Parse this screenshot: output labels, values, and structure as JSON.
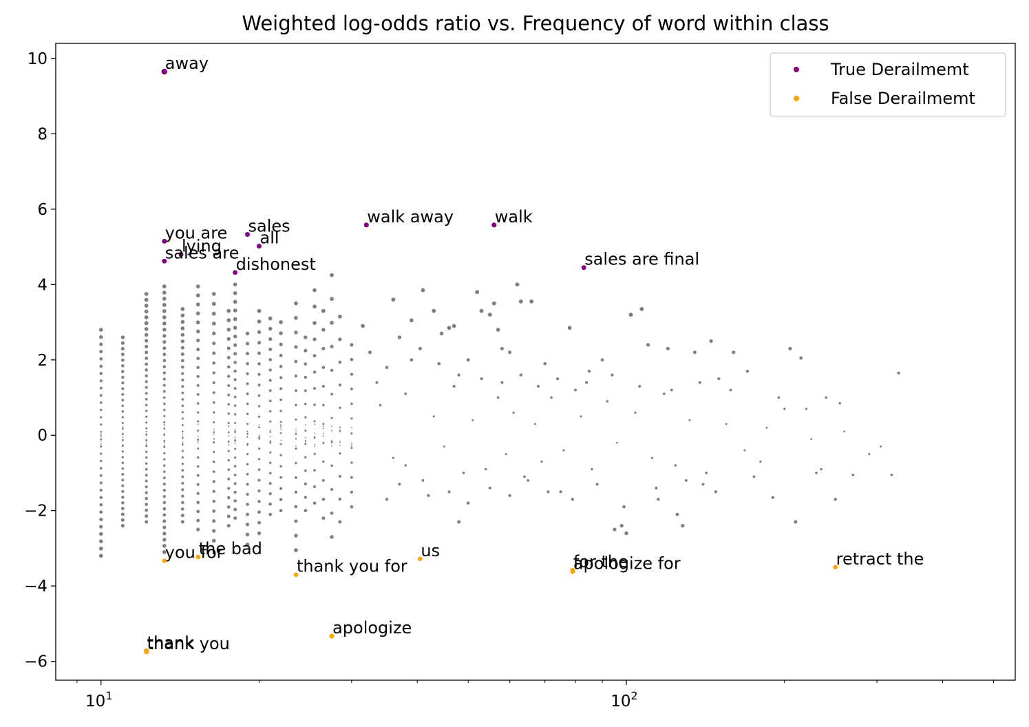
{
  "chart_data": {
    "type": "scatter",
    "title": "Weighted log-odds ratio vs. Frequency of word within class",
    "xlabel": "",
    "ylabel": "",
    "xscale": "log",
    "xlim": [
      8.2,
      550
    ],
    "ylim": [
      -6.5,
      10.4
    ],
    "grid": false,
    "legend_position": "top-right",
    "x_ticks": [
      {
        "value": 10,
        "base": "10",
        "exp": "1"
      },
      {
        "value": 100,
        "base": "10",
        "exp": "2"
      }
    ],
    "y_ticks": [
      -6,
      -4,
      -2,
      0,
      2,
      4,
      6,
      8,
      10
    ],
    "y_tick_labels": [
      "−6",
      "−4",
      "−2",
      "0",
      "2",
      "4",
      "6",
      "8",
      "10"
    ],
    "series": [
      {
        "name": "True Derailmemt",
        "color": "#800080",
        "points": [
          {
            "x": 13.2,
            "y": 9.65,
            "label": "away"
          },
          {
            "x": 13.2,
            "y": 5.15,
            "label": "you are"
          },
          {
            "x": 19.0,
            "y": 5.33,
            "label": "sales"
          },
          {
            "x": 20.0,
            "y": 5.02,
            "label": "all"
          },
          {
            "x": 14.2,
            "y": 4.8,
            "label": "lying"
          },
          {
            "x": 13.2,
            "y": 4.62,
            "label": "sales are"
          },
          {
            "x": 18.0,
            "y": 4.32,
            "label": "dishonest"
          },
          {
            "x": 32.0,
            "y": 5.58,
            "label": "walk away"
          },
          {
            "x": 56.0,
            "y": 5.58,
            "label": "walk"
          },
          {
            "x": 83.0,
            "y": 4.45,
            "label": "sales are final"
          }
        ]
      },
      {
        "name": "False Derailmemt",
        "color": "#ffa500",
        "points": [
          {
            "x": 13.2,
            "y": -3.33,
            "label": "you for"
          },
          {
            "x": 15.3,
            "y": -3.23,
            "label": "the bad"
          },
          {
            "x": 23.5,
            "y": -3.7,
            "label": "thank you for"
          },
          {
            "x": 40.5,
            "y": -3.28,
            "label": "us"
          },
          {
            "x": 27.5,
            "y": -5.33,
            "label": "apologize"
          },
          {
            "x": 12.2,
            "y": -5.72,
            "label": "thank"
          },
          {
            "x": 12.2,
            "y": -5.75,
            "label": "thank you"
          },
          {
            "x": 79.0,
            "y": -3.58,
            "label": "for the"
          },
          {
            "x": 79.0,
            "y": -3.62,
            "label": "apologize for"
          },
          {
            "x": 250.0,
            "y": -3.5,
            "label": "retract the"
          }
        ]
      }
    ],
    "background_series": {
      "color": "#808080",
      "columns": [
        {
          "x": 10.0,
          "ymin": -3.2,
          "ymax": 2.8,
          "n": 32
        },
        {
          "x": 11.0,
          "ymin": -2.4,
          "ymax": 2.6,
          "n": 34
        },
        {
          "x": 12.2,
          "ymin": -2.3,
          "ymax": 3.75,
          "n": 40
        },
        {
          "x": 13.2,
          "ymin": -3.1,
          "ymax": 3.95,
          "n": 44
        },
        {
          "x": 14.3,
          "ymin": -2.3,
          "ymax": 3.35,
          "n": 34
        },
        {
          "x": 15.3,
          "ymin": -2.5,
          "ymax": 3.95,
          "n": 28
        },
        {
          "x": 16.4,
          "ymin": -2.8,
          "ymax": 3.75,
          "n": 26
        },
        {
          "x": 17.5,
          "ymin": -2.4,
          "ymax": 3.3,
          "n": 24
        },
        {
          "x": 18.0,
          "ymin": -2.2,
          "ymax": 4.0,
          "n": 28
        },
        {
          "x": 19.0,
          "ymin": -2.9,
          "ymax": 2.7,
          "n": 22
        },
        {
          "x": 20.0,
          "ymin": -2.6,
          "ymax": 3.3,
          "n": 22
        },
        {
          "x": 21.0,
          "ymin": -2.1,
          "ymax": 3.1,
          "n": 20
        },
        {
          "x": 22.0,
          "ymin": -2.0,
          "ymax": 3.0,
          "n": 18
        },
        {
          "x": 23.5,
          "ymin": -3.05,
          "ymax": 3.5,
          "n": 18
        },
        {
          "x": 24.5,
          "ymin": -2.0,
          "ymax": 2.6,
          "n": 14
        },
        {
          "x": 25.5,
          "ymin": -1.8,
          "ymax": 3.85,
          "n": 14
        },
        {
          "x": 26.5,
          "ymin": -2.2,
          "ymax": 3.3,
          "n": 12
        },
        {
          "x": 27.5,
          "ymin": -2.7,
          "ymax": 4.25,
          "n": 12
        },
        {
          "x": 28.5,
          "ymin": -2.3,
          "ymax": 3.15,
          "n": 10
        },
        {
          "x": 30.0,
          "ymin": -1.9,
          "ymax": 2.4,
          "n": 12
        }
      ],
      "scatter": [
        [
          31.5,
          2.9
        ],
        [
          32.5,
          2.2
        ],
        [
          33.5,
          1.4
        ],
        [
          35,
          -1.7
        ],
        [
          36,
          3.6
        ],
        [
          37,
          2.6
        ],
        [
          38,
          -0.8
        ],
        [
          39,
          3.05
        ],
        [
          40.5,
          2.3
        ],
        [
          41,
          3.85
        ],
        [
          43,
          3.3
        ],
        [
          44.5,
          2.7
        ],
        [
          46,
          2.85
        ],
        [
          47,
          2.9
        ],
        [
          48,
          -2.3
        ],
        [
          50,
          2.0
        ],
        [
          52,
          3.8
        ],
        [
          53,
          3.3
        ],
        [
          55,
          3.2
        ],
        [
          56,
          3.5
        ],
        [
          57,
          2.8
        ],
        [
          58,
          2.3
        ],
        [
          60,
          2.2
        ],
        [
          62,
          4.0
        ],
        [
          63,
          3.55
        ],
        [
          66,
          3.55
        ],
        [
          70,
          1.9
        ],
        [
          75,
          -1.5
        ],
        [
          78,
          2.85
        ],
        [
          80,
          1.2
        ],
        [
          85,
          1.7
        ],
        [
          90,
          2.0
        ],
        [
          95,
          -2.5
        ],
        [
          98,
          -2.4
        ],
        [
          100,
          -2.6
        ],
        [
          102,
          3.2
        ],
        [
          107,
          3.35
        ],
        [
          110,
          2.4
        ],
        [
          115,
          -1.7
        ],
        [
          120,
          2.3
        ],
        [
          125,
          -2.1
        ],
        [
          128,
          -2.4
        ],
        [
          135,
          2.2
        ],
        [
          140,
          -1.3
        ],
        [
          145,
          2.5
        ],
        [
          150,
          1.5
        ],
        [
          160,
          2.2
        ],
        [
          170,
          1.7
        ],
        [
          180,
          -0.7
        ],
        [
          190,
          -1.65
        ],
        [
          200,
          0.7
        ],
        [
          205,
          2.3
        ],
        [
          210,
          -2.3
        ],
        [
          215,
          2.05
        ],
        [
          220,
          0.7
        ],
        [
          230,
          -1.0
        ],
        [
          240,
          1.0
        ],
        [
          250,
          -1.7
        ],
        [
          255,
          0.85
        ],
        [
          270,
          -1.05
        ],
        [
          290,
          -0.5
        ],
        [
          305,
          -0.3
        ],
        [
          320,
          -1.05
        ],
        [
          330,
          1.65
        ],
        [
          34,
          0.8
        ],
        [
          36,
          -0.6
        ],
        [
          38,
          1.1
        ],
        [
          41,
          -1.2
        ],
        [
          43,
          0.5
        ],
        [
          45,
          -0.3
        ],
        [
          47,
          1.3
        ],
        [
          49,
          -1.0
        ],
        [
          51,
          0.4
        ],
        [
          54,
          -0.9
        ],
        [
          57,
          1.0
        ],
        [
          59,
          -0.5
        ],
        [
          61,
          0.6
        ],
        [
          64,
          -1.1
        ],
        [
          67,
          0.3
        ],
        [
          69,
          -0.7
        ],
        [
          72,
          1.0
        ],
        [
          76,
          -0.4
        ],
        [
          82,
          0.5
        ],
        [
          86,
          -0.9
        ],
        [
          92,
          0.9
        ],
        [
          96,
          -0.2
        ],
        [
          104,
          0.6
        ],
        [
          112,
          -0.6
        ],
        [
          118,
          1.1
        ],
        [
          124,
          -0.8
        ],
        [
          132,
          0.4
        ],
        [
          142,
          -1.0
        ],
        [
          155,
          0.3
        ],
        [
          168,
          -0.4
        ],
        [
          185,
          0.2
        ],
        [
          225,
          -0.1
        ],
        [
          260,
          0.1
        ],
        [
          35,
          1.8
        ],
        [
          37,
          -1.3
        ],
        [
          39,
          2.0
        ],
        [
          42,
          -1.6
        ],
        [
          44,
          1.9
        ],
        [
          46,
          -1.5
        ],
        [
          48,
          1.6
        ],
        [
          50,
          -1.8
        ],
        [
          53,
          1.5
        ],
        [
          55,
          -1.4
        ],
        [
          58,
          1.4
        ],
        [
          60,
          -1.6
        ],
        [
          63,
          1.6
        ],
        [
          65,
          -1.2
        ],
        [
          68,
          1.3
        ],
        [
          71,
          -1.5
        ],
        [
          74,
          1.5
        ],
        [
          79,
          -1.7
        ],
        [
          84,
          1.4
        ],
        [
          88,
          -1.3
        ],
        [
          94,
          1.6
        ],
        [
          99,
          -1.9
        ],
        [
          106,
          1.3
        ],
        [
          114,
          -1.4
        ],
        [
          122,
          1.2
        ],
        [
          130,
          -1.2
        ],
        [
          138,
          1.4
        ],
        [
          148,
          -1.5
        ],
        [
          158,
          1.2
        ],
        [
          175,
          -1.1
        ],
        [
          195,
          1.0
        ],
        [
          235,
          -0.9
        ]
      ]
    }
  }
}
